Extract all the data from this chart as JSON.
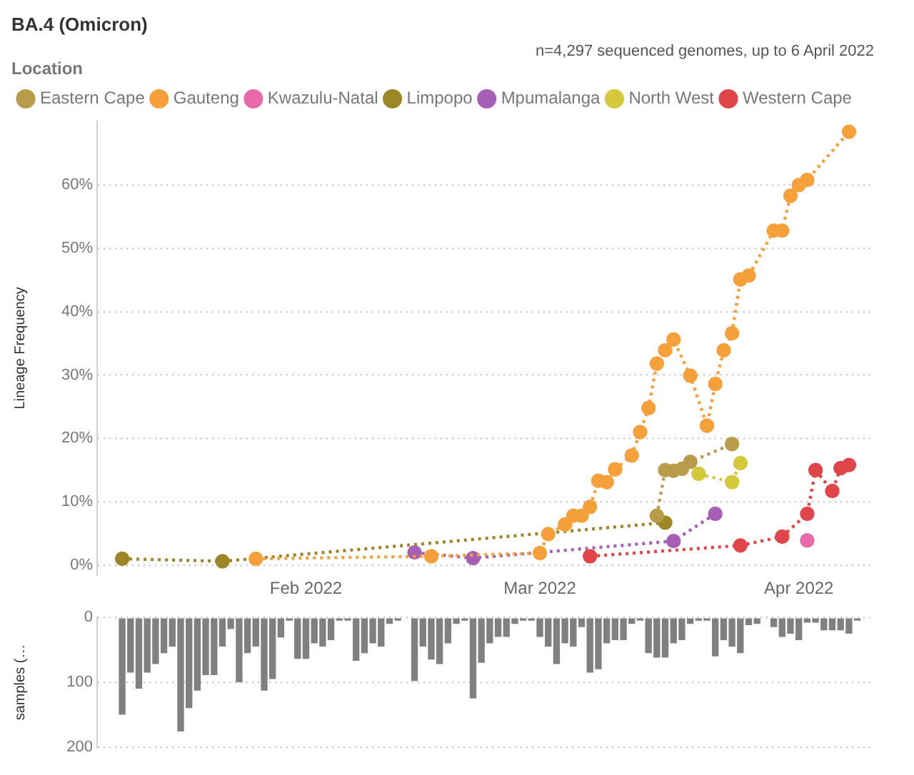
{
  "chart_data": [
    {
      "type": "line",
      "title": "BA.4 (Omicron)",
      "subtitle": "n=4,297 sequenced genomes, up to 6 April 2022",
      "ylabel": "Lineage Frequency",
      "legend_title": "Location",
      "legend": "top left",
      "grid": "y",
      "marker": "circle",
      "line_style": "dotted",
      "xlim": [
        "2022-01-07",
        "2022-04-10"
      ],
      "xticks": [
        {
          "value": "2022-02-01",
          "label": "Feb 2022"
        },
        {
          "value": "2022-03-01",
          "label": "Mar 2022"
        },
        {
          "value": "2022-04-01",
          "label": "Apr 2022"
        }
      ],
      "ylim": [
        -1.5,
        70
      ],
      "yticks": [
        {
          "value": 0,
          "label": "0%"
        },
        {
          "value": 10,
          "label": "10%"
        },
        {
          "value": 20,
          "label": "20%"
        },
        {
          "value": 30,
          "label": "30%"
        },
        {
          "value": 40,
          "label": "40%"
        },
        {
          "value": 50,
          "label": "50%"
        },
        {
          "value": 60,
          "label": "60%"
        }
      ],
      "series": [
        {
          "name": "Eastern Cape",
          "color": "#b89c4a",
          "x": [
            "2022-03-15",
            "2022-03-16",
            "2022-03-17",
            "2022-03-18",
            "2022-03-19",
            "2022-03-24"
          ],
          "values": [
            7.8,
            15.0,
            14.9,
            15.2,
            16.3,
            19.1
          ]
        },
        {
          "name": "Gauteng",
          "color": "#f5a03a",
          "x": [
            "2022-01-26",
            "2022-02-16",
            "2022-03-01",
            "2022-03-02",
            "2022-03-04",
            "2022-03-05",
            "2022-03-06",
            "2022-03-07",
            "2022-03-08",
            "2022-03-09",
            "2022-03-10",
            "2022-03-12",
            "2022-03-13",
            "2022-03-14",
            "2022-03-15",
            "2022-03-16",
            "2022-03-17",
            "2022-03-19",
            "2022-03-21",
            "2022-03-22",
            "2022-03-23",
            "2022-03-24",
            "2022-03-25",
            "2022-03-26",
            "2022-03-29",
            "2022-03-30",
            "2022-03-31",
            "2022-04-01",
            "2022-04-02",
            "2022-04-07"
          ],
          "values": [
            1.0,
            1.4,
            1.9,
            4.9,
            6.4,
            7.8,
            7.8,
            9.2,
            13.3,
            13.1,
            15.1,
            17.3,
            21.0,
            24.8,
            31.8,
            33.9,
            35.6,
            29.9,
            22.0,
            28.6,
            33.9,
            36.6,
            45.1,
            45.7,
            52.8,
            52.8,
            58.3,
            60.0,
            60.8,
            68.4
          ]
        },
        {
          "name": "Kwazulu-Natal",
          "color": "#e86aa8",
          "x": [
            "2022-04-02"
          ],
          "values": [
            3.9
          ]
        },
        {
          "name": "Limpopo",
          "color": "#9c8628",
          "x": [
            "2022-01-10",
            "2022-01-22",
            "2022-03-16"
          ],
          "values": [
            1.0,
            0.6,
            6.7
          ]
        },
        {
          "name": "Mpumalanga",
          "color": "#a55fb5",
          "x": [
            "2022-02-14",
            "2022-02-21",
            "2022-03-17",
            "2022-03-22"
          ],
          "values": [
            2.0,
            1.1,
            3.8,
            8.1
          ]
        },
        {
          "name": "North West",
          "color": "#d4c93a",
          "x": [
            "2022-03-20",
            "2022-03-24",
            "2022-03-25"
          ],
          "values": [
            14.4,
            13.1,
            16.1
          ]
        },
        {
          "name": "Western Cape",
          "color": "#e0454a",
          "x": [
            "2022-03-07",
            "2022-03-25",
            "2022-03-30",
            "2022-04-02",
            "2022-04-03",
            "2022-04-05",
            "2022-04-06",
            "2022-04-07"
          ],
          "values": [
            1.4,
            3.1,
            4.5,
            8.1,
            15.0,
            11.7,
            15.3,
            15.8
          ]
        }
      ]
    },
    {
      "type": "bar",
      "ylabel": "samples (…",
      "grid": "y",
      "tick_labels": "y",
      "color": "#808080",
      "xlim": [
        "2022-01-07",
        "2022-04-10"
      ],
      "ylim": [
        200,
        0
      ],
      "yticks": [
        0,
        100,
        200
      ],
      "x": [
        "2022-01-10",
        "2022-01-11",
        "2022-01-12",
        "2022-01-13",
        "2022-01-14",
        "2022-01-15",
        "2022-01-16",
        "2022-01-17",
        "2022-01-18",
        "2022-01-19",
        "2022-01-20",
        "2022-01-21",
        "2022-01-22",
        "2022-01-23",
        "2022-01-24",
        "2022-01-25",
        "2022-01-26",
        "2022-01-27",
        "2022-01-28",
        "2022-01-29",
        "2022-01-30",
        "2022-01-31",
        "2022-02-01",
        "2022-02-02",
        "2022-02-03",
        "2022-02-04",
        "2022-02-05",
        "2022-02-06",
        "2022-02-07",
        "2022-02-08",
        "2022-02-09",
        "2022-02-10",
        "2022-02-11",
        "2022-02-12",
        "2022-02-13",
        "2022-02-14",
        "2022-02-15",
        "2022-02-16",
        "2022-02-17",
        "2022-02-18",
        "2022-02-19",
        "2022-02-20",
        "2022-02-21",
        "2022-02-22",
        "2022-02-23",
        "2022-02-24",
        "2022-02-25",
        "2022-02-26",
        "2022-02-27",
        "2022-02-28",
        "2022-03-01",
        "2022-03-02",
        "2022-03-03",
        "2022-03-04",
        "2022-03-05",
        "2022-03-06",
        "2022-03-07",
        "2022-03-08",
        "2022-03-09",
        "2022-03-10",
        "2022-03-11",
        "2022-03-12",
        "2022-03-13",
        "2022-03-14",
        "2022-03-15",
        "2022-03-16",
        "2022-03-17",
        "2022-03-18",
        "2022-03-19",
        "2022-03-20",
        "2022-03-21",
        "2022-03-22",
        "2022-03-23",
        "2022-03-24",
        "2022-03-25",
        "2022-03-26",
        "2022-03-27",
        "2022-03-28",
        "2022-03-29",
        "2022-03-30",
        "2022-03-31",
        "2022-04-01",
        "2022-04-02",
        "2022-04-03",
        "2022-04-04",
        "2022-04-05",
        "2022-04-06",
        "2022-04-07",
        "2022-04-08"
      ],
      "values": [
        150,
        85,
        110,
        85,
        72,
        55,
        45,
        176,
        140,
        113,
        89,
        89,
        45,
        18,
        100,
        55,
        45,
        113,
        95,
        31,
        5,
        64,
        64,
        40,
        45,
        35,
        5,
        5,
        67,
        55,
        40,
        45,
        10,
        5,
        0,
        98,
        45,
        65,
        72,
        40,
        10,
        5,
        125,
        70,
        40,
        30,
        30,
        10,
        5,
        5,
        30,
        45,
        72,
        40,
        45,
        15,
        85,
        80,
        40,
        35,
        35,
        10,
        5,
        55,
        62,
        62,
        40,
        35,
        10,
        5,
        5,
        60,
        35,
        45,
        55,
        12,
        10,
        0,
        15,
        30,
        25,
        35,
        8,
        8,
        20,
        20,
        20,
        25,
        5
      ]
    }
  ]
}
